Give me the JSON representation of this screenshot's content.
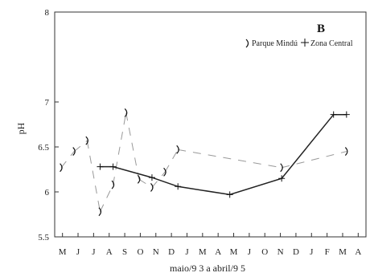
{
  "chart_data": {
    "type": "line",
    "panel_label": "B",
    "xlabel": "maio/9 3  a  abril/9 5",
    "ylabel": "pH",
    "ylim": [
      5.5,
      8
    ],
    "y_ticks": [
      "5.5",
      "6",
      "6.5",
      "7",
      "8"
    ],
    "categories": [
      "M",
      "J",
      "J",
      "A",
      "S",
      "O",
      "N",
      "D",
      "J",
      "F",
      "M",
      "A",
      "M",
      "J",
      "J",
      "A",
      "S",
      "O",
      "N",
      "D",
      "J",
      "F",
      "M",
      "A"
    ],
    "x_tick_labels": [
      "M",
      "J",
      "J",
      "A",
      "S",
      "O",
      "N",
      "D",
      "J",
      "M",
      "A",
      "M",
      "J",
      "O",
      "N",
      "D",
      "J",
      "F",
      "M",
      "A"
    ],
    "legend_position": "top-right",
    "series": [
      {
        "name": "Parque Mindú",
        "marker": "parenthesis",
        "values": [
          6.27,
          6.45,
          6.57,
          5.78,
          6.08,
          6.88,
          6.14,
          6.05,
          6.22,
          6.47,
          null,
          null,
          null,
          null,
          null,
          null,
          null,
          6.27,
          null,
          null,
          null,
          null,
          6.45,
          null
        ]
      },
      {
        "name": "Zona Central",
        "marker": "plus",
        "values": [
          null,
          null,
          null,
          6.28,
          6.28,
          null,
          null,
          6.16,
          null,
          6.06,
          null,
          null,
          null,
          5.97,
          null,
          null,
          null,
          6.15,
          null,
          null,
          null,
          6.86,
          6.86,
          null
        ]
      }
    ]
  }
}
